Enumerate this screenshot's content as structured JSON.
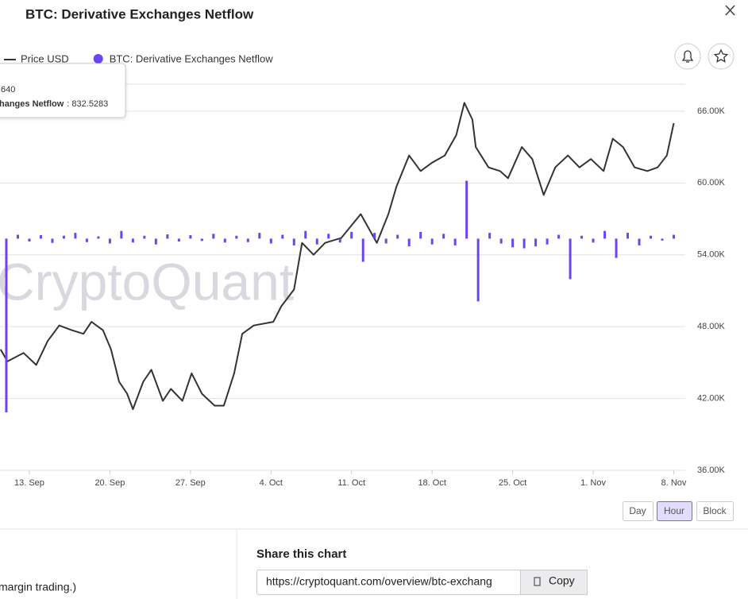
{
  "chart_data": {
    "type": "line",
    "title": "BTC: Derivative Exchanges Netflow",
    "watermark": "CryptoQuant",
    "legend": "top-left",
    "grid": true,
    "xlim": [
      10.45,
      70
    ],
    "xticks": [
      {
        "value": 13,
        "label": "13. Sep"
      },
      {
        "value": 20,
        "label": "20. Sep"
      },
      {
        "value": 27,
        "label": "27. Sep"
      },
      {
        "value": 34,
        "label": "4. Oct"
      },
      {
        "value": 41,
        "label": "11. Oct"
      },
      {
        "value": 48,
        "label": "18. Oct"
      },
      {
        "value": 55,
        "label": "25. Oct"
      },
      {
        "value": 62,
        "label": "1. Nov"
      },
      {
        "value": 69,
        "label": "8. Nov"
      }
    ],
    "ylim": [
      36000,
      68250
    ],
    "yticks": [
      {
        "value": 36000,
        "label": "36.00K"
      },
      {
        "value": 42000,
        "label": "42.00K"
      },
      {
        "value": 48000,
        "label": "48.00K"
      },
      {
        "value": 54000,
        "label": "54.00K"
      },
      {
        "value": 60000,
        "label": "60.00K"
      },
      {
        "value": 66000,
        "label": "66.00K"
      }
    ],
    "y2lim": [
      -12000,
      8000
    ],
    "tooltip": {
      "line1": "640",
      "label": "hanges Netflow",
      "detail": ": 832.5283"
    },
    "series": [
      {
        "name": "Price USD",
        "color": "#333333",
        "x": [
          10.5,
          11.1,
          12.5,
          13.6,
          14.6,
          15.6,
          16.7,
          17.7,
          18.4,
          19.4,
          20.1,
          20.8,
          21.5,
          22.0,
          22.9,
          23.6,
          24.6,
          25.3,
          26.3,
          27.1,
          28.0,
          29.1,
          29.9,
          30.8,
          31.5,
          32.5,
          34.2,
          34.9,
          36.0,
          36.7,
          37.7,
          38.7,
          40.1,
          41.8,
          43.2,
          44.2,
          44.9,
          46.0,
          47.0,
          48.0,
          49.1,
          50.1,
          50.8,
          51.5,
          51.8,
          52.9,
          53.9,
          54.6,
          55.8,
          56.7,
          57.7,
          58.7,
          59.8,
          60.8,
          61.8,
          62.9,
          63.7,
          64.6,
          65.6,
          66.7,
          67.6,
          68.4,
          69.0
        ],
        "values": [
          46100,
          45100,
          45800,
          44800,
          46800,
          48100,
          47700,
          47400,
          48400,
          47700,
          46100,
          43400,
          42400,
          41100,
          43400,
          44400,
          41800,
          42800,
          41800,
          44100,
          42400,
          41400,
          41400,
          44100,
          47400,
          48100,
          48400,
          49700,
          51100,
          55000,
          54000,
          55000,
          55400,
          57400,
          55000,
          57400,
          59700,
          62300,
          61000,
          61700,
          62300,
          64000,
          66700,
          65300,
          63000,
          61300,
          61000,
          60400,
          63000,
          62000,
          59000,
          61300,
          62300,
          61300,
          62000,
          61000,
          63700,
          63000,
          61300,
          61000,
          61300,
          62300,
          65000
        ]
      },
      {
        "name": "BTC: Derivative Exchanges Netflow",
        "color": "#6b45f0",
        "type": "bar",
        "axis": "y2",
        "x": [
          11,
          12,
          13,
          14,
          15,
          16,
          17,
          18,
          19,
          20,
          21,
          22,
          23,
          24,
          25,
          26,
          27,
          28,
          29,
          30,
          31,
          32,
          33,
          34,
          35,
          36,
          37,
          38,
          39,
          40,
          41,
          42,
          43,
          44,
          45,
          46,
          47,
          48,
          49,
          50,
          51,
          52,
          53,
          54,
          55,
          56,
          57,
          58,
          59,
          60,
          61,
          62,
          63,
          64,
          65,
          66,
          67,
          68,
          69
        ],
        "values": [
          -9000,
          200,
          -150,
          180,
          -220,
          150,
          300,
          -180,
          120,
          -250,
          400,
          -200,
          150,
          -300,
          220,
          -150,
          180,
          -120,
          250,
          -200,
          150,
          -180,
          300,
          -250,
          200,
          -350,
          400,
          -300,
          250,
          -200,
          350,
          -1200,
          300,
          -250,
          200,
          -400,
          350,
          -300,
          250,
          -350,
          3000,
          -3250,
          300,
          -250,
          -450,
          -500,
          -400,
          -300,
          200,
          -2100,
          150,
          -200,
          400,
          -1000,
          300,
          -350,
          150,
          -100,
          200
        ]
      }
    ]
  },
  "resolution": {
    "options": [
      "Day",
      "Hour",
      "Block"
    ],
    "selected_index": 1
  },
  "share": {
    "title": "Share this chart",
    "url": "https://cryptoquant.com/overview/btc-exchang",
    "button": "Copy"
  },
  "footer_text": "margin trading.)"
}
